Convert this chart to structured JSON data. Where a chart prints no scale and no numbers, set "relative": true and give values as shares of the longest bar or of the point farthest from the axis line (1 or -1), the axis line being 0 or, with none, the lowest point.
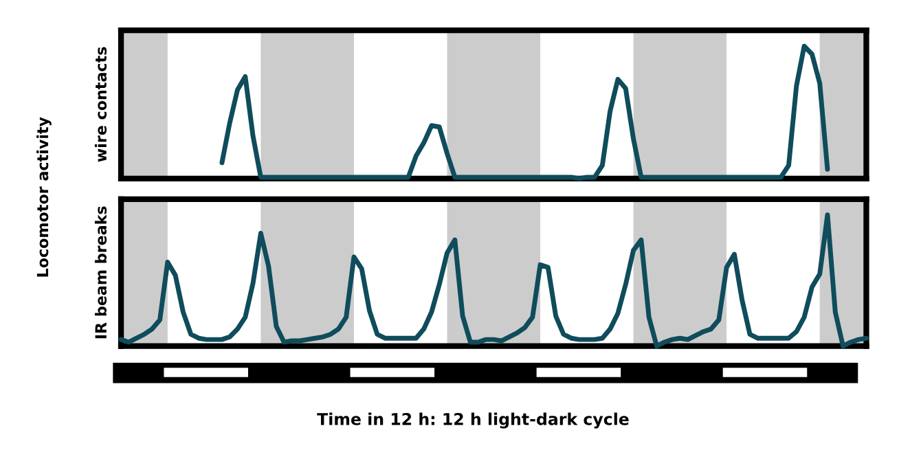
{
  "chart_data": [
    {
      "type": "line",
      "ylabel": "wire contacts",
      "annotations": [
        "Locomotor activity"
      ],
      "relative": true,
      "categories": [
        null,
        null,
        null,
        null,
        null,
        null,
        null,
        null,
        null,
        null,
        null,
        null,
        null,
        null,
        null,
        null,
        null,
        null,
        null,
        null,
        null,
        null,
        null,
        null,
        null,
        null,
        null,
        null,
        null,
        null,
        null,
        null,
        null,
        null,
        null,
        null,
        null,
        null,
        null,
        null,
        null,
        null,
        null,
        null,
        null,
        null,
        null,
        null,
        null,
        null,
        null,
        null,
        null,
        null,
        null,
        null,
        null,
        null,
        null,
        null,
        null,
        null,
        null,
        null,
        null,
        null,
        null,
        null,
        null,
        null,
        null,
        null,
        null,
        null,
        null,
        null,
        null,
        null,
        null,
        null,
        null,
        null,
        null,
        null,
        null,
        null,
        null,
        null,
        null,
        null,
        null,
        null,
        null,
        null,
        null,
        null,
        null
      ],
      "series": [
        {
          "color": "#0f4c5c",
          "values": [
            null,
            null,
            null,
            null,
            null,
            null,
            null,
            null,
            null,
            null,
            null,
            null,
            null,
            0.12,
            0.42,
            0.67,
            0.77,
            0.32,
            0.01,
            0.01,
            0.01,
            0.01,
            0.01,
            0.01,
            0.01,
            0.01,
            0.01,
            0.01,
            0.01,
            0.01,
            0.01,
            0.01,
            0.01,
            0.01,
            0.01,
            0.01,
            0.01,
            0.01,
            0.17,
            0.27,
            0.4,
            0.39,
            0.19,
            0.01,
            0.01,
            0.01,
            0.01,
            0.01,
            0.01,
            0.01,
            0.01,
            0.01,
            0.01,
            0.01,
            0.01,
            0.01,
            0.01,
            0.01,
            0.01,
            0,
            0.01,
            0.01,
            0.1,
            0.51,
            0.75,
            0.68,
            0.3,
            0.01,
            0.01,
            0.01,
            0.01,
            0.01,
            0.01,
            0.01,
            0.01,
            0.01,
            0.01,
            0.01,
            0.01,
            0.01,
            0.01,
            0.01,
            0.01,
            0.01,
            0.01,
            0.01,
            0.1,
            0.7,
            1,
            0.94,
            0.72,
            0.07,
            null,
            null,
            null,
            null,
            null
          ]
        }
      ]
    },
    {
      "type": "line",
      "ylabel": "IR beam breaks",
      "xlabel": "Time in 12 h: 12 h light-dark cycle",
      "relative": true,
      "categories": [
        null,
        null,
        null,
        null,
        null,
        null,
        null,
        null,
        null,
        null,
        null,
        null,
        null,
        null,
        null,
        null,
        null,
        null,
        null,
        null,
        null,
        null,
        null,
        null,
        null,
        null,
        null,
        null,
        null,
        null,
        null,
        null,
        null,
        null,
        null,
        null,
        null,
        null,
        null,
        null,
        null,
        null,
        null,
        null,
        null,
        null,
        null,
        null,
        null,
        null,
        null,
        null,
        null,
        null,
        null,
        null,
        null,
        null,
        null,
        null,
        null,
        null,
        null,
        null,
        null,
        null,
        null,
        null,
        null,
        null,
        null,
        null,
        null,
        null,
        null,
        null,
        null,
        null,
        null,
        null,
        null,
        null,
        null,
        null,
        null,
        null,
        null,
        null,
        null,
        null,
        null,
        null,
        null,
        null,
        null,
        null,
        null
      ],
      "series": [
        {
          "color": "#0f4c5c",
          "values": [
            0.05,
            0.03,
            0.06,
            0.09,
            0.13,
            0.2,
            0.64,
            0.54,
            0.26,
            0.09,
            0.06,
            0.05,
            0.05,
            0.05,
            0.07,
            0.13,
            0.22,
            0.48,
            0.86,
            0.61,
            0.15,
            0.03,
            0.04,
            0.04,
            0.05,
            0.06,
            0.07,
            0.09,
            0.13,
            0.22,
            0.68,
            0.59,
            0.27,
            0.09,
            0.06,
            0.06,
            0.06,
            0.06,
            0.06,
            0.13,
            0.26,
            0.47,
            0.71,
            0.81,
            0.23,
            0.03,
            0.03,
            0.05,
            0.05,
            0.04,
            0.07,
            0.1,
            0.14,
            0.22,
            0.62,
            0.6,
            0.23,
            0.09,
            0.06,
            0.05,
            0.05,
            0.05,
            0.06,
            0.13,
            0.25,
            0.47,
            0.73,
            0.81,
            0.22,
            0,
            0.03,
            0.05,
            0.06,
            0.05,
            0.08,
            0.11,
            0.13,
            0.2,
            0.6,
            0.7,
            0.35,
            0.09,
            0.06,
            0.06,
            0.06,
            0.06,
            0.06,
            0.11,
            0.22,
            0.45,
            0.55,
            1,
            0.26,
            0,
            0.03,
            0.05,
            0.06
          ]
        }
      ]
    }
  ]
}
